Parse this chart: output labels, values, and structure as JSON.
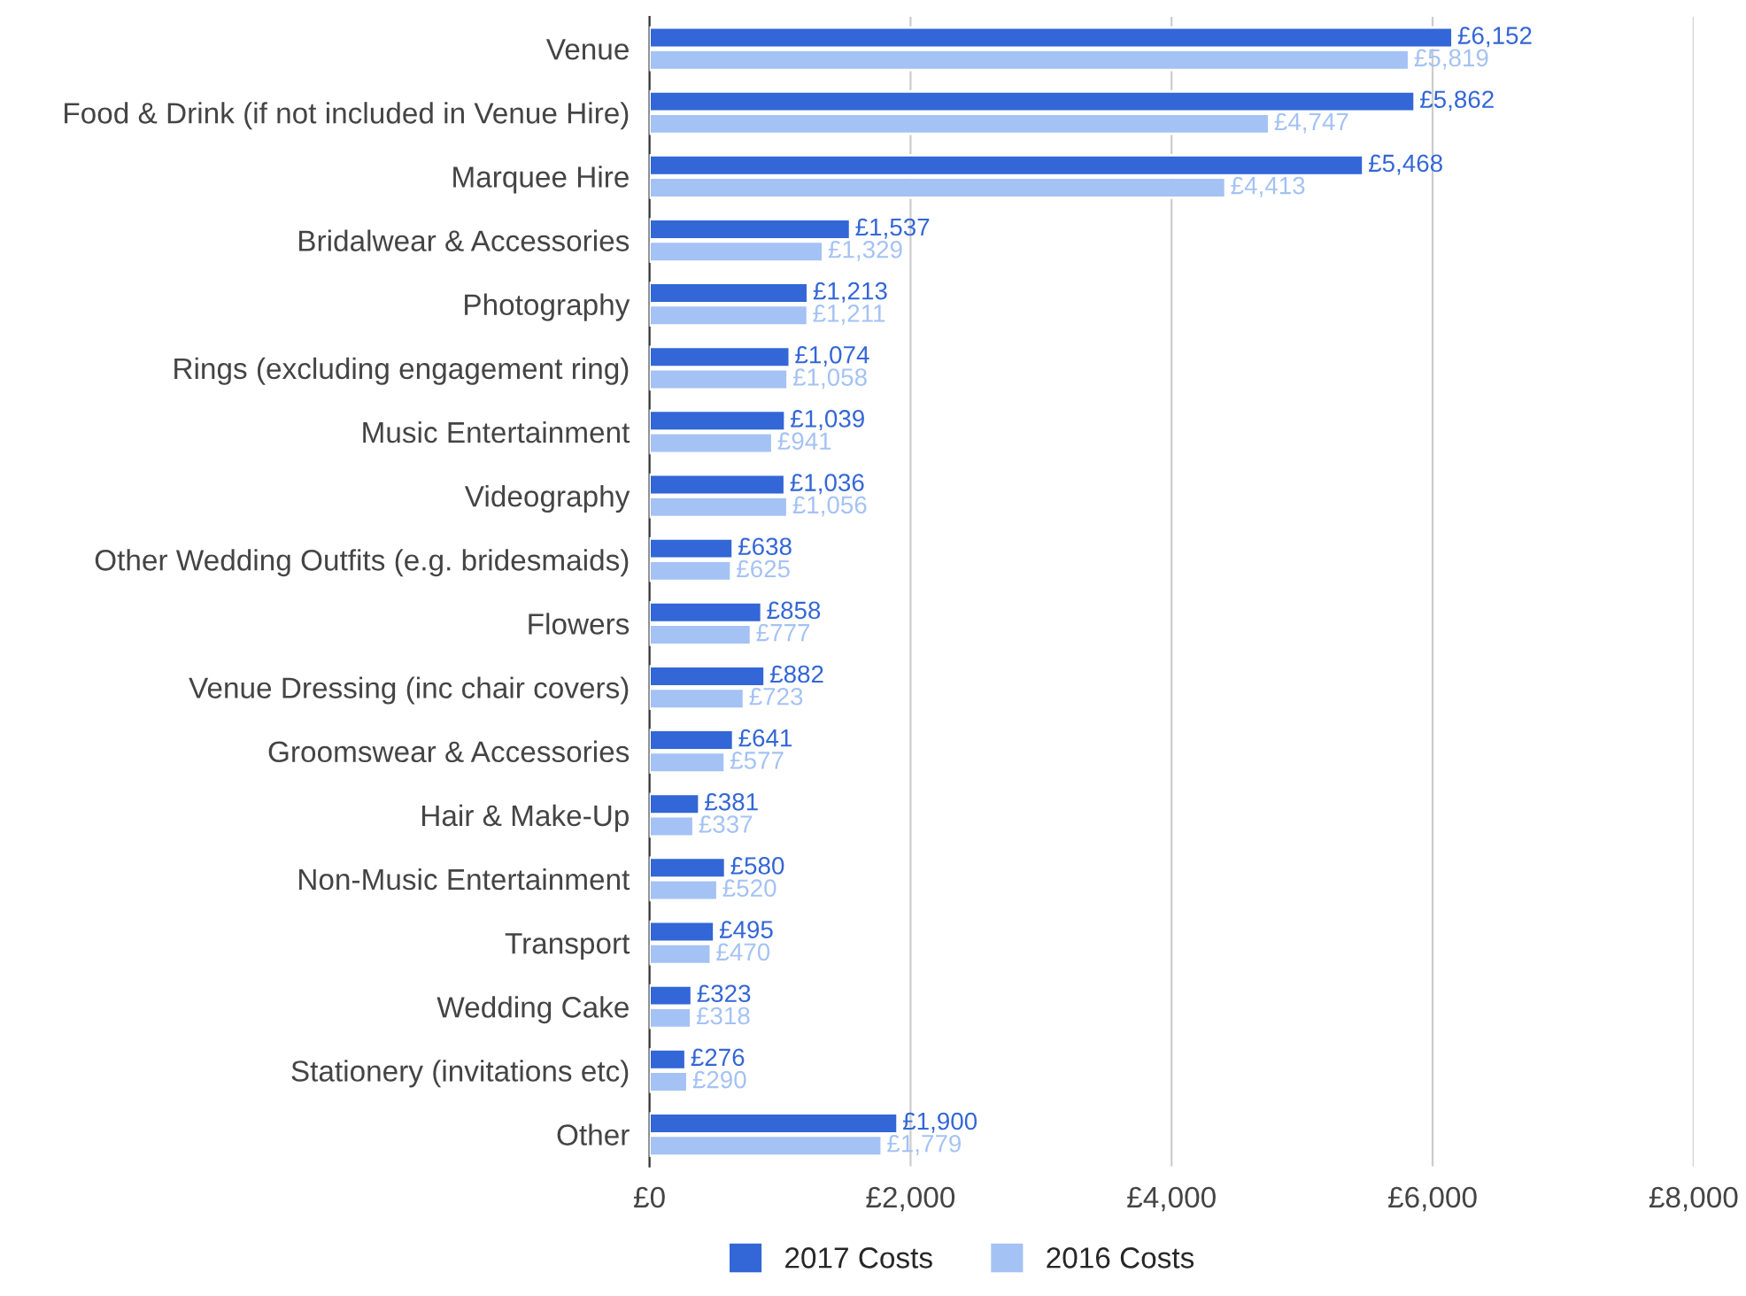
{
  "chart_data": {
    "type": "bar",
    "orientation": "horizontal",
    "categories": [
      "Venue",
      "Food & Drink (if not included in Venue Hire)",
      "Marquee Hire",
      "Bridalwear & Accessories",
      "Photography",
      "Rings (excluding engagement ring)",
      "Music Entertainment",
      "Videography",
      "Other Wedding Outfits (e.g. bridesmaids)",
      "Flowers",
      "Venue Dressing (inc chair covers)",
      "Groomswear & Accessories",
      "Hair & Make-Up",
      "Non-Music Entertainment",
      "Transport",
      "Wedding Cake",
      "Stationery (invitations etc)",
      "Other"
    ],
    "series": [
      {
        "name": "2017 Costs",
        "color": "#3366d6",
        "values": [
          6152,
          5862,
          5468,
          1537,
          1213,
          1074,
          1039,
          1036,
          638,
          858,
          882,
          641,
          381,
          580,
          495,
          323,
          276,
          1900
        ],
        "value_labels": [
          "£6,152",
          "£5,862",
          "£5,468",
          "£1,537",
          "£1,213",
          "£1,074",
          "£1,039",
          "£1,036",
          "£638",
          "£858",
          "£882",
          "£641",
          "£381",
          "£580",
          "£495",
          "£323",
          "£276",
          "£1,900"
        ]
      },
      {
        "name": "2016 Costs",
        "color": "#a4c2f4",
        "values": [
          5819,
          4747,
          4413,
          1329,
          1211,
          1058,
          941,
          1056,
          625,
          777,
          723,
          577,
          337,
          520,
          470,
          318,
          290,
          1779
        ],
        "value_labels": [
          "£5,819",
          "£4,747",
          "£4,413",
          "£1,329",
          "£1,211",
          "£1,058",
          "£941",
          "£1,056",
          "£625",
          "£777",
          "£723",
          "£577",
          "£337",
          "£520",
          "£470",
          "£318",
          "£290",
          "£1,779"
        ]
      }
    ],
    "xlim": [
      0,
      8000
    ],
    "xticks": [
      {
        "value": 0,
        "label": "£0"
      },
      {
        "value": 2000,
        "label": "£2,000"
      },
      {
        "value": 4000,
        "label": "£4,000"
      },
      {
        "value": 6000,
        "label": "£6,000"
      },
      {
        "value": 8000,
        "label": "£8,000"
      }
    ],
    "grid": "x",
    "legend": "bottom"
  }
}
